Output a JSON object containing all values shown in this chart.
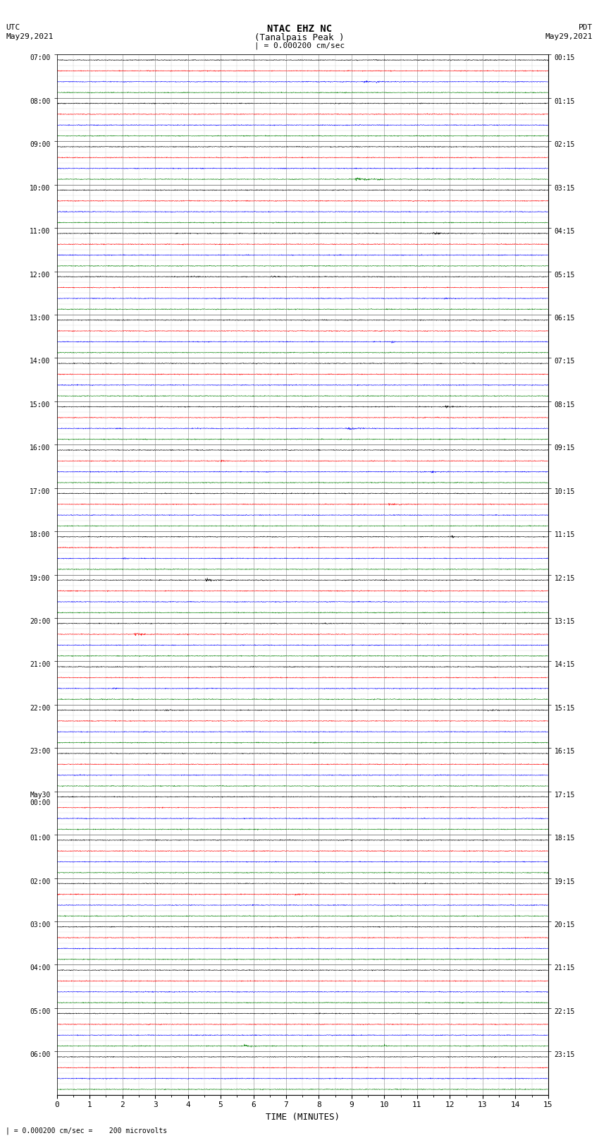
{
  "title_line1": "NTAC EHZ NC",
  "title_line2": "(Tanalpais Peak )",
  "title_line3": "| = 0.000200 cm/sec",
  "left_label_top": "UTC",
  "left_label_date": "May29,2021",
  "right_label_top": "PDT",
  "right_label_date": "May29,2021",
  "bottom_label": "TIME (MINUTES)",
  "footer_text": "| = 0.000200 cm/sec =    200 microvolts",
  "x_min": 0,
  "x_max": 15,
  "x_ticks": [
    0,
    1,
    2,
    3,
    4,
    5,
    6,
    7,
    8,
    9,
    10,
    11,
    12,
    13,
    14,
    15
  ],
  "background_color": "#ffffff",
  "trace_colors": [
    "black",
    "red",
    "blue",
    "green"
  ],
  "utc_labels": [
    "07:00",
    "08:00",
    "09:00",
    "10:00",
    "11:00",
    "12:00",
    "13:00",
    "14:00",
    "15:00",
    "16:00",
    "17:00",
    "18:00",
    "19:00",
    "20:00",
    "21:00",
    "22:00",
    "23:00",
    "May30\n00:00",
    "01:00",
    "02:00",
    "03:00",
    "04:00",
    "05:00",
    "06:00"
  ],
  "pdt_labels": [
    "00:15",
    "01:15",
    "02:15",
    "03:15",
    "04:15",
    "05:15",
    "06:15",
    "07:15",
    "08:15",
    "09:15",
    "10:15",
    "11:15",
    "12:15",
    "13:15",
    "14:15",
    "15:15",
    "16:15",
    "17:15",
    "18:15",
    "19:15",
    "20:15",
    "21:15",
    "22:15",
    "23:15"
  ],
  "num_groups": 24,
  "traces_per_group": 4,
  "noise_amp": 0.018,
  "event_amp": 0.08
}
